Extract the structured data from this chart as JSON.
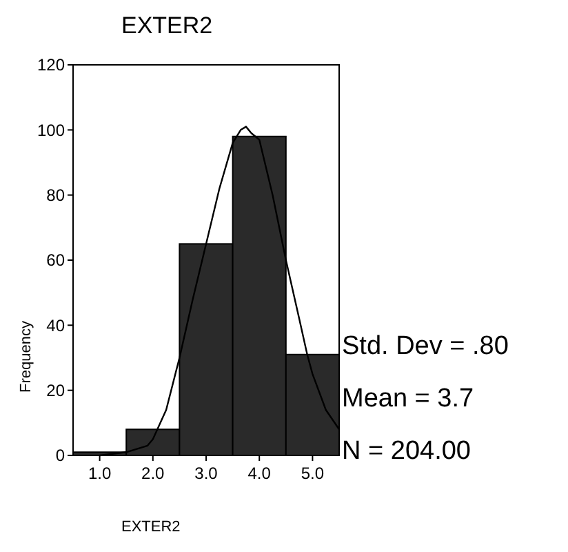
{
  "chart_data": {
    "type": "histogram",
    "title": "EXTER2",
    "xlabel": "EXTER2",
    "ylabel": "Frequency",
    "bins": [
      0.5,
      1.5,
      2.5,
      3.5,
      4.5,
      5.5
    ],
    "values": [
      1,
      8,
      65,
      98,
      31
    ],
    "color": "#2a2a2a",
    "series": [
      {
        "type": "line",
        "color": "#000000",
        "x": [
          1.0,
          1.5,
          1.9,
          2.0,
          2.25,
          2.5,
          2.75,
          3.0,
          3.25,
          3.5,
          3.65,
          3.75,
          3.85,
          4.0,
          4.25,
          4.5,
          4.75,
          4.9,
          5.0,
          5.25,
          5.5
        ],
        "values": [
          0,
          1,
          3,
          5,
          14,
          30,
          48,
          65,
          82,
          96,
          100,
          101,
          99,
          97,
          80,
          60,
          42,
          31,
          25,
          14,
          8
        ]
      }
    ],
    "xlim": [
      0.5,
      5.5
    ],
    "ylim": [
      0,
      120
    ],
    "xticks": [
      {
        "value": 1,
        "label": "1.0"
      },
      {
        "value": 2,
        "label": "2.0"
      },
      {
        "value": 3,
        "label": "3.0"
      },
      {
        "value": 4,
        "label": "4.0"
      },
      {
        "value": 5,
        "label": "5.0"
      }
    ],
    "yticks": [
      0,
      20,
      40,
      60,
      80,
      100,
      120
    ],
    "grid": false,
    "annotations": [
      "Std. Dev = .80",
      "Mean = 3.7",
      "N = 204.00"
    ]
  }
}
